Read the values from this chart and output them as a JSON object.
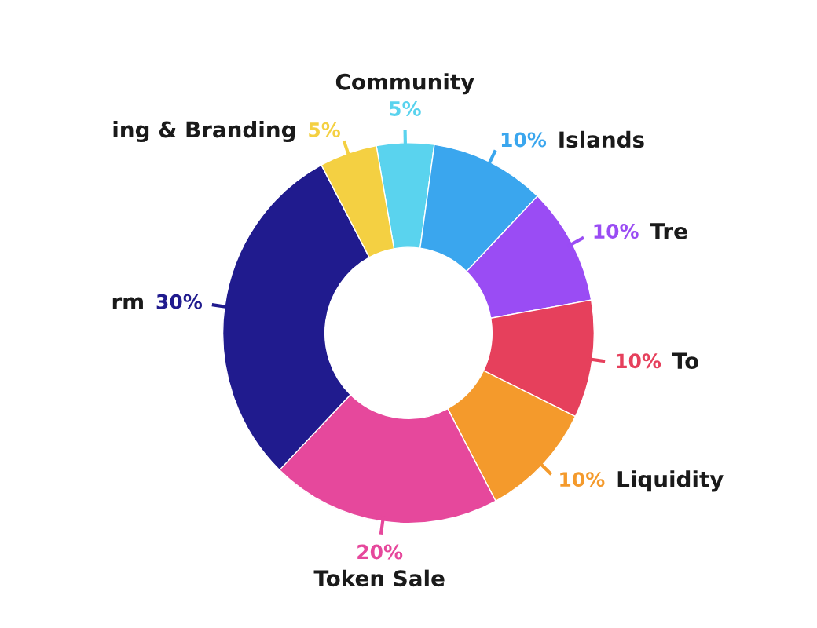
{
  "chart_data": {
    "type": "donut",
    "categories": [
      "Community",
      "Islands",
      "Tre",
      "To",
      "Liquidity",
      "Token Sale",
      "rm",
      "ing & Branding"
    ],
    "values": [
      5,
      10,
      10,
      10,
      10,
      20,
      30,
      5
    ],
    "value_labels": [
      "5%",
      "10%",
      "10%",
      "10%",
      "10%",
      "20%",
      "30%",
      "5%"
    ],
    "colors": [
      "#5ad3ee",
      "#3aa6ee",
      "#9a4cf4",
      "#e6405c",
      "#f49a2c",
      "#e6489c",
      "#201b8e",
      "#f4d042"
    ],
    "legend": false
  }
}
